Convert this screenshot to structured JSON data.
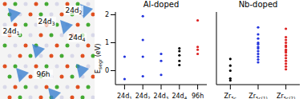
{
  "image": {
    "labels": [
      "24d1",
      "24d2",
      "24d3",
      "24d4",
      "96h"
    ]
  },
  "chart_data": [
    {
      "type": "scatter",
      "title": "Al-doped",
      "y_label": {
        "main": "E",
        "sub": "segr",
        "unit": " (eV)"
      },
      "categories": [
        "24d1",
        "24d2",
        "24d3",
        "24d4",
        "96h"
      ],
      "values": [
        [
          0.5,
          -0.3
        ],
        [
          1.95,
          1.1,
          0.5,
          -0.2
        ],
        [
          0.6,
          0.35,
          -0.15
        ],
        [
          0.8,
          0.7,
          0.55,
          0.35,
          0.2
        ],
        [
          1.8,
          0.85,
          0.75,
          0.6
        ]
      ],
      "colors": [
        "#2233dd",
        "#2233dd",
        "#2233dd",
        "#000000",
        "#dd2222"
      ],
      "ylim": [
        -0.5,
        2.1
      ],
      "yticks": [
        0,
        1,
        2
      ]
    },
    {
      "type": "scatter",
      "title": "Nb-doped",
      "categories": [
        "Zr5c",
        "Zr5c(1)",
        "Zr5c(2)"
      ],
      "values": [
        [
          0.42,
          0.18,
          0.0,
          -0.28,
          -0.35
        ],
        [
          1.55,
          1.3,
          1.15,
          1.0,
          0.95,
          0.85,
          0.8,
          0.7,
          0.6,
          0.5,
          0.4,
          0.3
        ],
        [
          1.5,
          1.2,
          1.1,
          1.0,
          0.9,
          0.85,
          0.75,
          0.7,
          0.65,
          0.55,
          0.45,
          0.35,
          0.25,
          0.15,
          0.05
        ]
      ],
      "colors": [
        "#000000",
        "#2233dd",
        "#dd2222"
      ],
      "ylim": [
        -0.5,
        2.1
      ],
      "yticks": [
        0,
        1,
        2
      ],
      "tick_labels": "x"
    }
  ]
}
